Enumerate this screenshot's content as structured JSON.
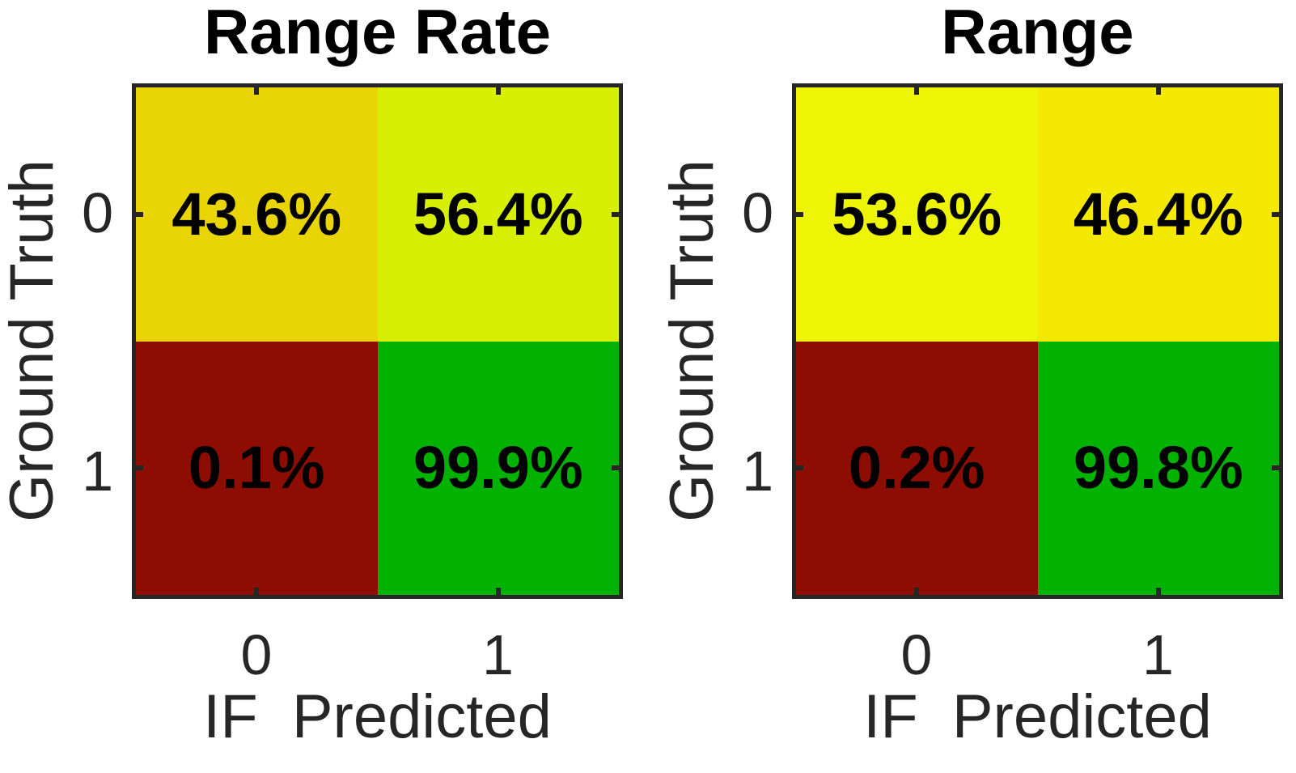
{
  "figure": {
    "background": "#ffffff",
    "axis_color": "#262626",
    "title_color": "#000000",
    "value_text_color": "#000000"
  },
  "chart_data": [
    {
      "type": "heatmap",
      "title": "Range Rate",
      "xlabel": "IF  Predicted",
      "ylabel": "Ground Truth",
      "x_categories": [
        "0",
        "1"
      ],
      "y_categories": [
        "0",
        "1"
      ],
      "values_percent": [
        [
          43.6,
          56.4
        ],
        [
          0.1,
          99.9
        ]
      ],
      "cell_labels": [
        [
          "43.6%",
          "56.4%"
        ],
        [
          "0.1%",
          "99.9%"
        ]
      ],
      "cell_colors": [
        [
          "#e9d506",
          "#d7ef04"
        ],
        [
          "#8d0d02",
          "#01b201"
        ]
      ],
      "colormap": "red-yellow-green",
      "legend": "none",
      "grid": false
    },
    {
      "type": "heatmap",
      "title": "Range",
      "xlabel": "IF  Predicted",
      "ylabel": "Ground Truth",
      "x_categories": [
        "0",
        "1"
      ],
      "y_categories": [
        "0",
        "1"
      ],
      "values_percent": [
        [
          53.6,
          46.4
        ],
        [
          0.2,
          99.8
        ]
      ],
      "cell_labels": [
        [
          "53.6%",
          "46.4%"
        ],
        [
          "0.2%",
          "99.8%"
        ]
      ],
      "cell_colors": [
        [
          "#edf405",
          "#f3e903"
        ],
        [
          "#8d0d02",
          "#01b201"
        ]
      ],
      "colormap": "red-yellow-green",
      "legend": "none",
      "grid": false
    }
  ]
}
